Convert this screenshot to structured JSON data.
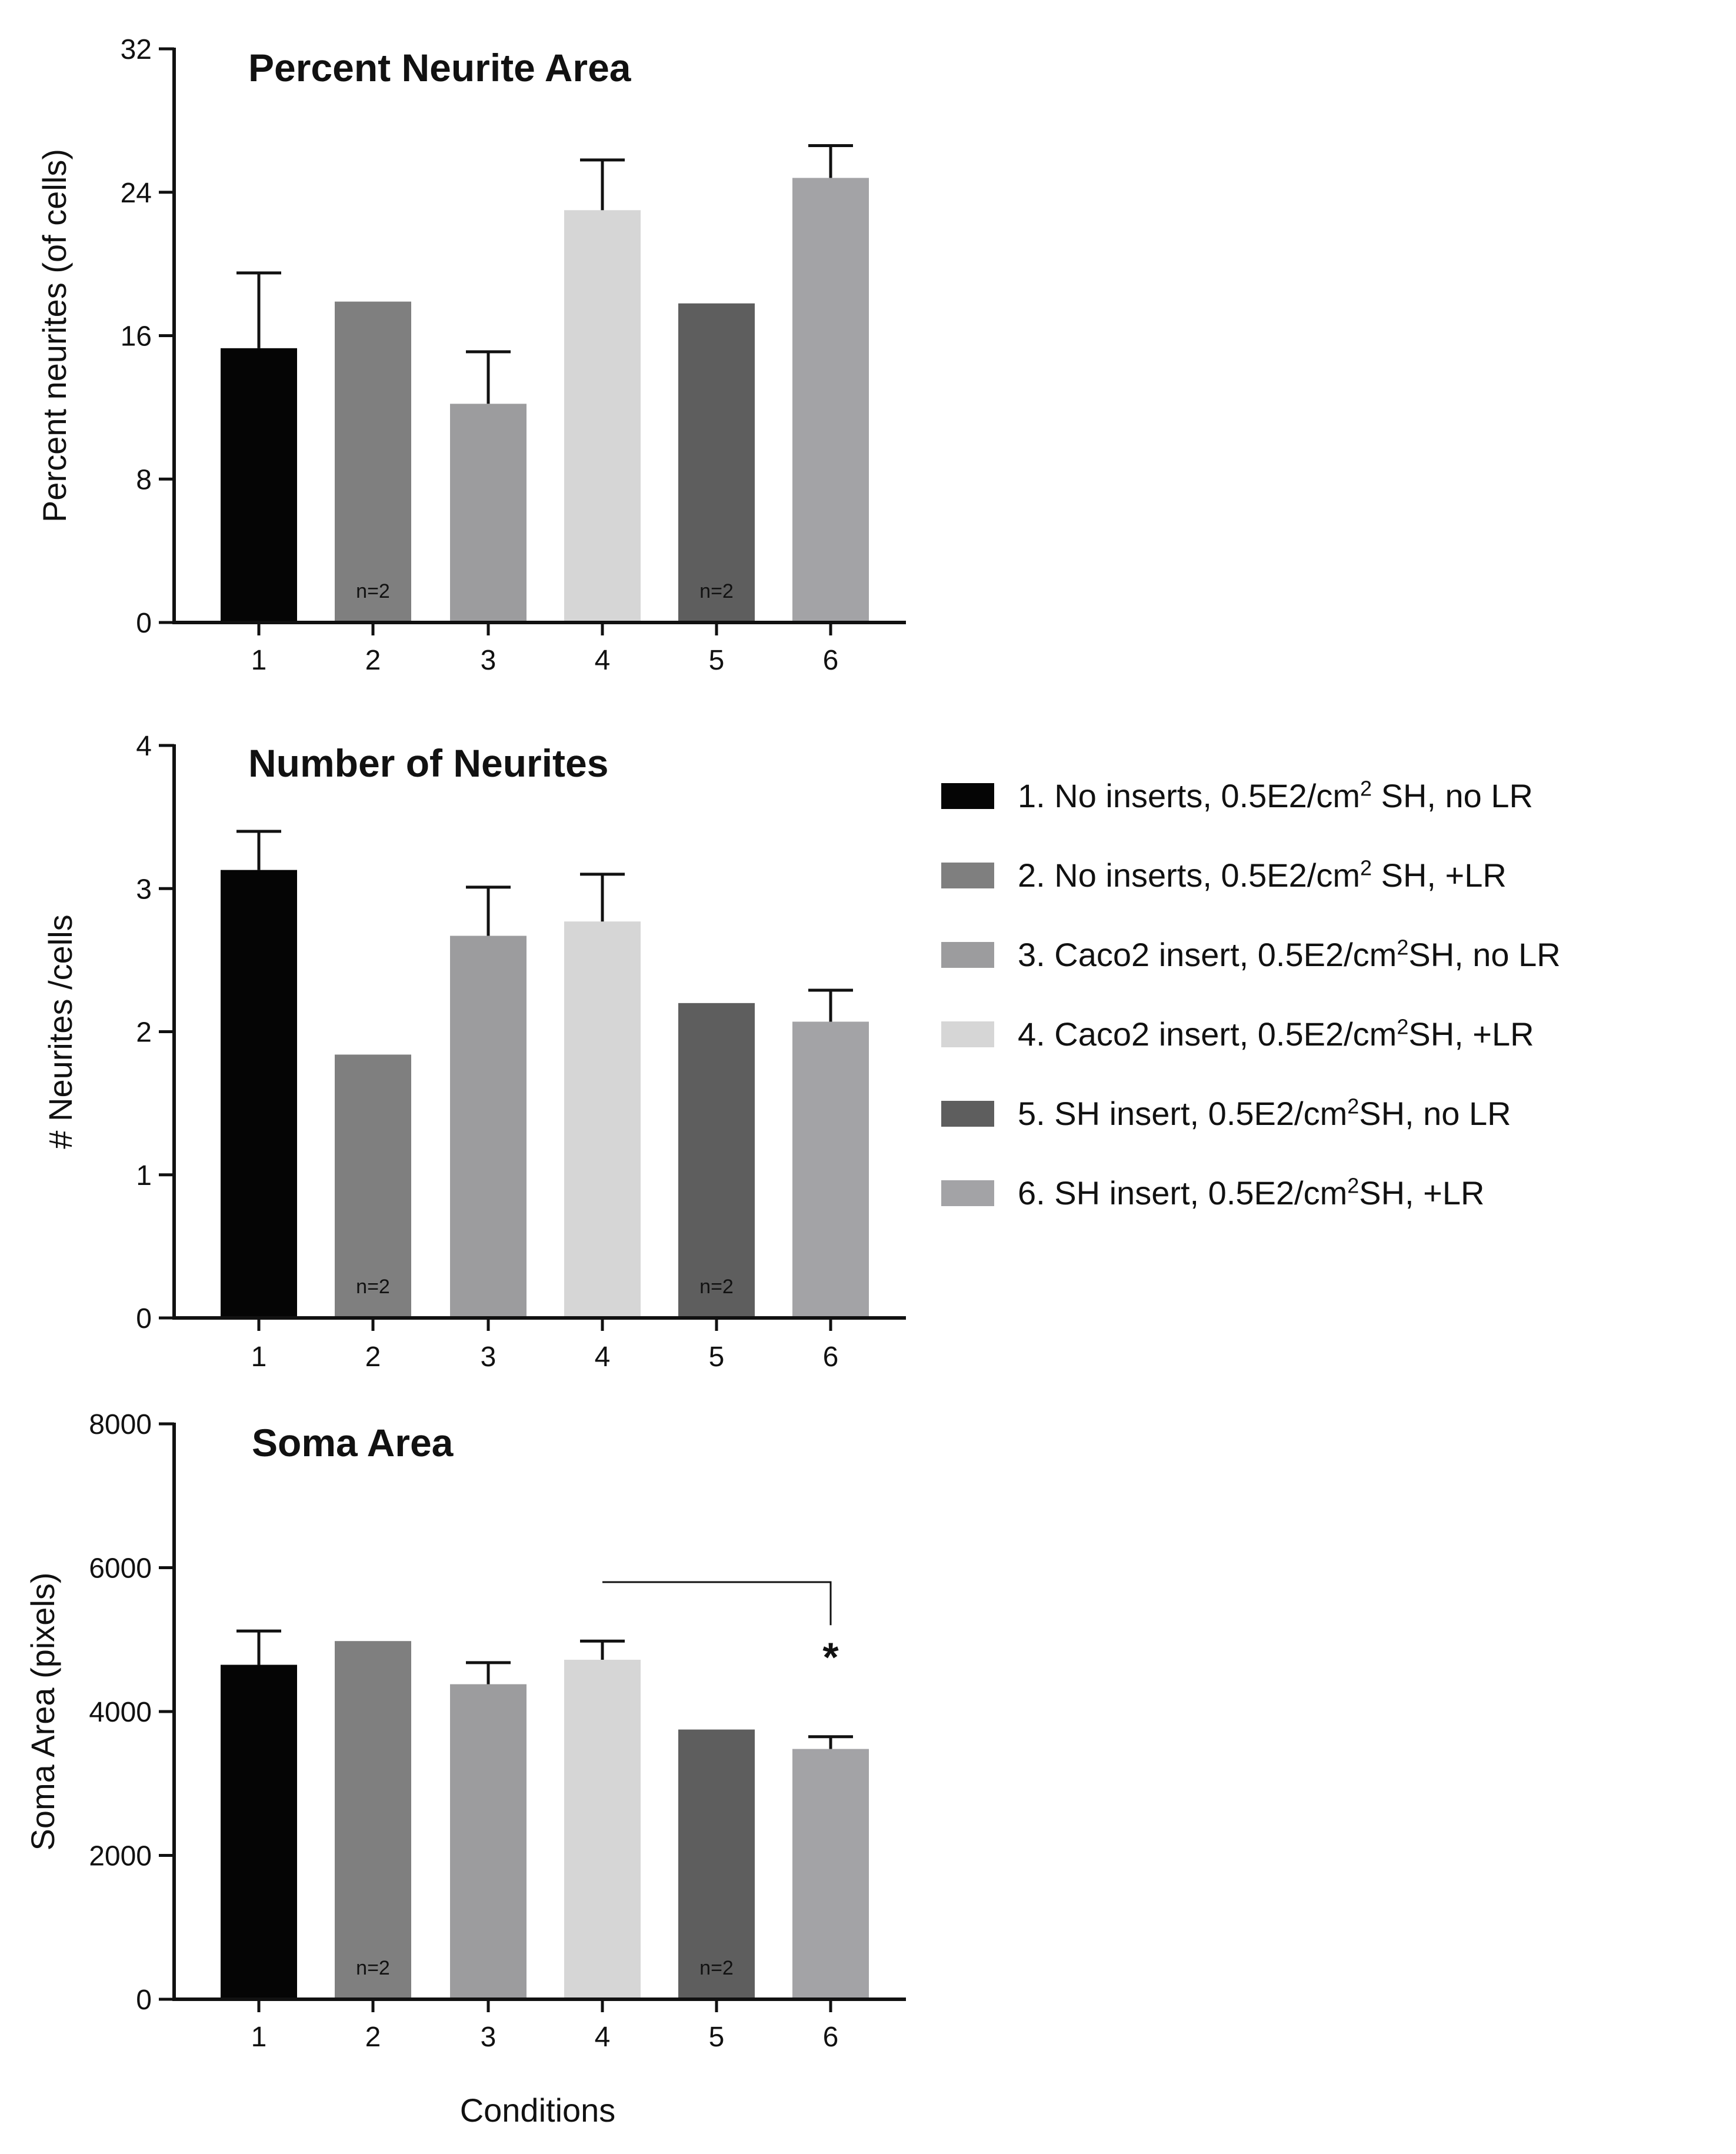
{
  "colors": {
    "axis": "#111111",
    "bars": [
      "#050505",
      "#7f7f7f",
      "#9c9c9e",
      "#d6d6d6",
      "#5e5e5e",
      "#a3a3a6"
    ]
  },
  "chart_data": [
    {
      "type": "bar",
      "title": "Percent Neurite Area",
      "xlabel": "",
      "ylabel": "Percent neurites (of cells)",
      "categories": [
        "1",
        "2",
        "3",
        "4",
        "5",
        "6"
      ],
      "values": [
        15.3,
        17.9,
        12.2,
        23.0,
        17.8,
        24.8
      ],
      "errors": [
        4.2,
        null,
        2.9,
        2.8,
        null,
        1.8
      ],
      "ylim": [
        0,
        32
      ],
      "yticks": [
        "0",
        "8",
        "16",
        "24",
        "32"
      ],
      "annotations": [
        {
          "category": "2",
          "text": "n=2"
        },
        {
          "category": "5",
          "text": "n=2"
        }
      ]
    },
    {
      "type": "bar",
      "title": "Number of Neurites",
      "xlabel": "",
      "ylabel": "# Neurites /cells",
      "categories": [
        "1",
        "2",
        "3",
        "4",
        "5",
        "6"
      ],
      "values": [
        3.13,
        1.84,
        2.67,
        2.77,
        2.2,
        2.07
      ],
      "errors": [
        0.27,
        null,
        0.34,
        0.33,
        null,
        0.22
      ],
      "ylim": [
        0,
        4
      ],
      "yticks": [
        "0",
        "1",
        "2",
        "3",
        "4"
      ],
      "annotations": [
        {
          "category": "2",
          "text": "n=2"
        },
        {
          "category": "5",
          "text": "n=2"
        }
      ]
    },
    {
      "type": "bar",
      "title": "Soma Area",
      "xlabel": "Conditions",
      "ylabel": "Soma Area (pixels)",
      "categories": [
        "1",
        "2",
        "3",
        "4",
        "5",
        "6"
      ],
      "values": [
        4650,
        4980,
        4380,
        4720,
        3750,
        3480
      ],
      "errors": [
        470,
        null,
        300,
        260,
        null,
        170
      ],
      "ylim": [
        0,
        8000
      ],
      "yticks": [
        "0",
        "2000",
        "4000",
        "6000",
        "8000"
      ],
      "annotations": [
        {
          "category": "2",
          "text": "n=2"
        },
        {
          "category": "5",
          "text": "n=2"
        }
      ],
      "significance": {
        "from": "4",
        "to": "6",
        "text": "*"
      }
    }
  ],
  "legend": {
    "items": [
      {
        "pre": "1. No inserts, 0.5E2/cm",
        "sup": "2",
        "post": " SH, no LR"
      },
      {
        "pre": "2. No inserts, 0.5E2/cm",
        "sup": "2",
        "post": " SH, +LR"
      },
      {
        "pre": "3. Caco2 insert, 0.5E2/cm",
        "sup": "2",
        "post": "SH, no LR"
      },
      {
        "pre": "4. Caco2 insert, 0.5E2/cm",
        "sup": "2",
        "post": "SH, +LR"
      },
      {
        "pre": "5. SH insert, 0.5E2/cm",
        "sup": "2",
        "post": "SH, no LR"
      },
      {
        "pre": "6. SH insert, 0.5E2/cm",
        "sup": "2",
        "post": "SH, +LR"
      }
    ]
  }
}
